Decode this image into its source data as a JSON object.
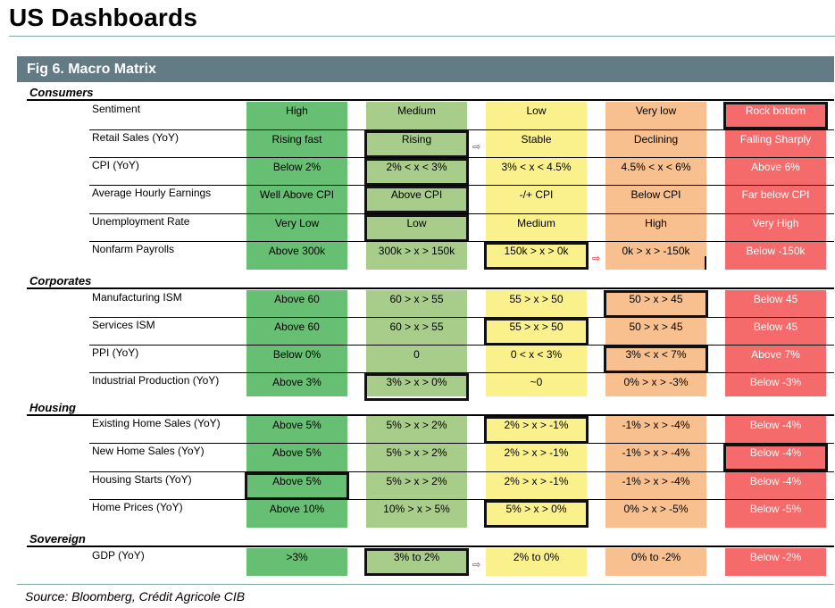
{
  "header": {
    "title": "US Dashboards",
    "figure_title": "Fig 6. Macro Matrix",
    "source": "Source: Bloomberg, Crédit Agricole CIB"
  },
  "arrow_glyph": "⇨",
  "colors": {
    "high": "#66bf72",
    "medium": "#a8cd8a",
    "low": "#faf18c",
    "very_low": "#f8c08f",
    "bottom": "#f56a6a",
    "bottom_text": "#ffffff",
    "header_bar": "#637b85"
  },
  "sections": [
    {
      "title": "Consumers",
      "rows": [
        {
          "label": "Sentiment",
          "cells": [
            "High",
            "Medium",
            "Low",
            "Very low",
            "Rock bottom"
          ],
          "highlight": 4
        },
        {
          "label": "Retail Sales (YoY)",
          "cells": [
            "Rising fast",
            "Rising",
            "Stable",
            "Declining",
            "Falling Sharply"
          ],
          "highlight": 1,
          "arrow": 2
        },
        {
          "label": "CPI (YoY)",
          "cells": [
            "Below 2%",
            "2% < x < 3%",
            "3% < x < 4.5%",
            "4.5% < x < 6%",
            "Above 6%"
          ],
          "highlight": 1
        },
        {
          "label": "Average Hourly Earnings",
          "cells": [
            "Well Above CPI",
            "Above CPI",
            "-/+ CPI",
            "Below CPI",
            "Far below CPI"
          ],
          "highlight": 1
        },
        {
          "label": "Unemployment Rate",
          "cells": [
            "Very Low",
            "Low",
            "Medium",
            "High",
            "Very High"
          ],
          "highlight": 1
        },
        {
          "label": "Nonfarm Payrolls",
          "cells": [
            "Above 300k",
            "300k > x > 150k",
            "150k > x > 0k",
            "0k > x > -150k",
            "Below -150k"
          ],
          "highlight": 2,
          "arrow": 3
        }
      ]
    },
    {
      "title": "Corporates",
      "rows": [
        {
          "label": "Manufacturing ISM",
          "cells": [
            "Above 60",
            "60 > x > 55",
            "55 > x > 50",
            "50 > x > 45",
            "Below 45"
          ],
          "highlight": 3
        },
        {
          "label": "Services ISM",
          "cells": [
            "Above 60",
            "60 > x > 55",
            "55 > x > 50",
            "50 > x > 45",
            "Below 45"
          ],
          "highlight": 2
        },
        {
          "label": "PPI (YoY)",
          "cells": [
            "Below 0%",
            "0",
            "0 < x < 3%",
            "3% < x < 7%",
            "Above 7%"
          ],
          "highlight": 3
        },
        {
          "label": "Industrial Production (YoY)",
          "cells": [
            "Above 3%",
            "3% > x > 0%",
            "~0",
            "0% > x > -3%",
            "Below -3%"
          ],
          "highlight": 1
        }
      ]
    },
    {
      "title": "Housing",
      "rows": [
        {
          "label": "Existing Home Sales (YoY)",
          "cells": [
            "Above 5%",
            "5% > x > 2%",
            "2% > x > -1%",
            "-1% > x > -4%",
            "Below -4%"
          ],
          "highlight": 2
        },
        {
          "label": "New Home Sales (YoY)",
          "cells": [
            "Above 5%",
            "5% > x > 2%",
            "2% > x > -1%",
            "-1% > x > -4%",
            "Below -4%"
          ],
          "highlight": 4
        },
        {
          "label": "Housing Starts (YoY)",
          "cells": [
            "Above 5%",
            "5% > x > 2%",
            "2% > x > -1%",
            "-1% > x > -4%",
            "Below -4%"
          ],
          "highlight": 0
        },
        {
          "label": "Home Prices (YoY)",
          "cells": [
            "Above 10%",
            "10% > x > 5%",
            "5% > x > 0%",
            "0% > x > -5%",
            "Below -5%"
          ],
          "highlight": 2
        }
      ]
    },
    {
      "title": "Sovereign",
      "rows": [
        {
          "label": "GDP (YoY)",
          "cells": [
            ">3%",
            "3% to 2%",
            "2% to 0%",
            "0% to -2%",
            "Below -2%"
          ],
          "highlight": 1,
          "arrow": 2
        }
      ]
    }
  ]
}
